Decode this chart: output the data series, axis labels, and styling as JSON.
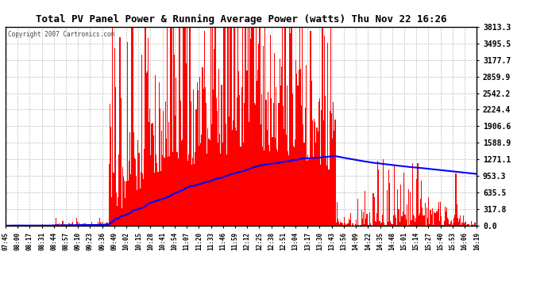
{
  "title": "Total PV Panel Power & Running Average Power (watts) Thu Nov 22 16:26",
  "copyright": "Copyright 2007 Cartronics.com",
  "background_color": "#ffffff",
  "plot_bg_color": "#ffffff",
  "grid_color": "#bbbbbb",
  "bar_color": "#ff0000",
  "line_color": "#0000ff",
  "ymax": 3813.3,
  "yticks": [
    0.0,
    317.8,
    635.5,
    953.3,
    1271.1,
    1588.9,
    1906.6,
    2224.4,
    2542.2,
    2859.9,
    3177.7,
    3495.5,
    3813.3
  ],
  "ytick_labels": [
    "0.0",
    "317.8",
    "635.5",
    "953.3",
    "1271.1",
    "1588.9",
    "1906.6",
    "2224.4",
    "2542.2",
    "2859.9",
    "3177.7",
    "3495.5",
    "3813.3"
  ],
  "xtick_labels": [
    "07:45",
    "08:00",
    "08:17",
    "08:31",
    "08:44",
    "08:57",
    "09:10",
    "09:23",
    "09:36",
    "09:49",
    "10:02",
    "10:15",
    "10:28",
    "10:41",
    "10:54",
    "11:07",
    "11:20",
    "11:33",
    "11:46",
    "11:59",
    "12:12",
    "12:25",
    "12:38",
    "12:51",
    "13:04",
    "13:17",
    "13:30",
    "13:43",
    "13:56",
    "14:09",
    "14:22",
    "14:35",
    "14:48",
    "15:01",
    "15:14",
    "15:27",
    "15:40",
    "15:53",
    "16:06",
    "16:19"
  ]
}
